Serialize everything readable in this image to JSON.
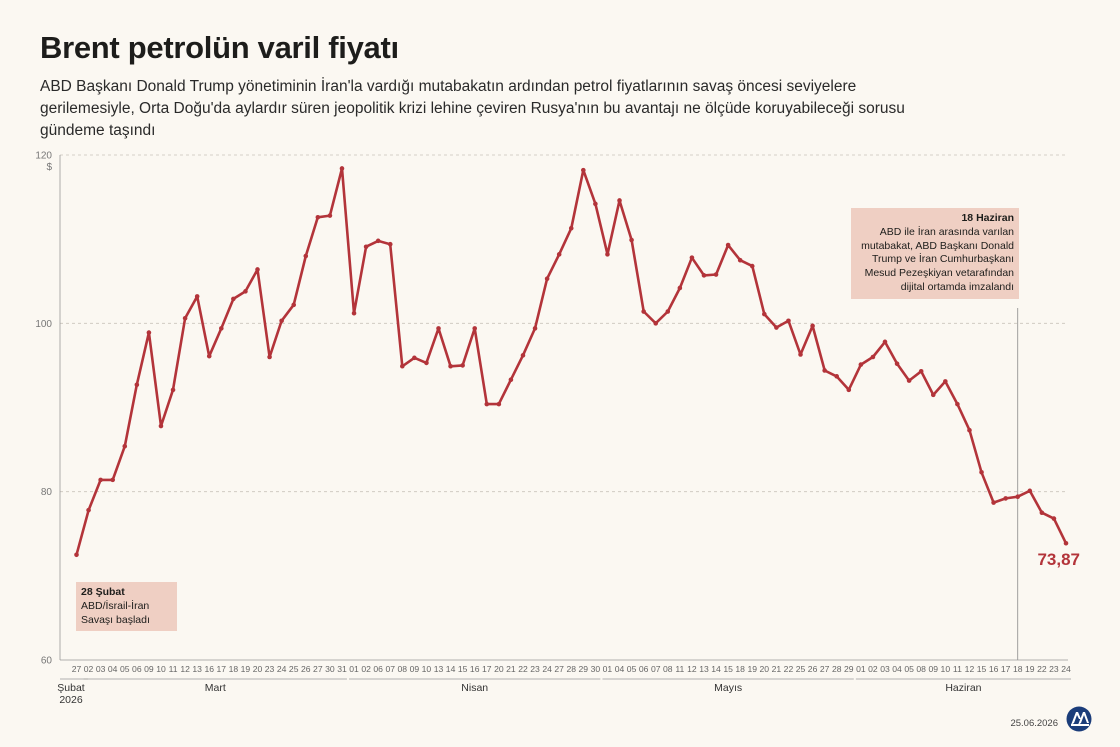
{
  "header": {
    "title": "Brent petrolün varil fiyatı",
    "subtitle": "ABD Başkanı Donald Trump yönetiminin İran'la vardığı mutabakatın ardından petrol fiyatlarının savaş öncesi seviyelere gerilemesiyle, Orta Doğu'da aylardır süren jeopolitik krizi lehine çeviren Rusya'nın bu avantajı ne ölçüde koruyabileceği sorusu gündeme taşındı"
  },
  "annotations": {
    "start": {
      "date": "28 Şubat",
      "text": "ABD/İsrail-İran Savaşı başladı"
    },
    "end": {
      "date": "18 Haziran",
      "text": "ABD ile İran arasında varılan mutabakat, ABD Başkanı Donald Trump ve İran Cumhurbaşkanı Mesud Pezeşkiyan vetarafından dijital ortamda imzalandı"
    },
    "last_value": "73,87"
  },
  "footer": {
    "date": "25.06.2026",
    "logo": "AA-logo"
  },
  "colors": {
    "line": "#b3343a",
    "callout": "#efcfc3",
    "background": "#fbf8f2"
  },
  "chart_data": {
    "type": "line",
    "ylim": [
      60,
      120
    ],
    "yticks": [
      60,
      80,
      100,
      120
    ],
    "yunit": "$",
    "grid": true,
    "months": [
      {
        "label": "Şubat\n2026",
        "from": 0,
        "to": 0
      },
      {
        "label": "Mart",
        "from": 1,
        "to": 22
      },
      {
        "label": "Nisan",
        "from": 23,
        "to": 43
      },
      {
        "label": "Mayıs",
        "from": 44,
        "to": 64
      },
      {
        "label": "Haziran",
        "from": 65,
        "to": 82
      }
    ],
    "x": [
      "27",
      "02",
      "03",
      "04",
      "05",
      "06",
      "09",
      "10",
      "11",
      "12",
      "13",
      "16",
      "17",
      "18",
      "19",
      "20",
      "23",
      "24",
      "25",
      "26",
      "27",
      "30",
      "31",
      "01",
      "02",
      "06",
      "07",
      "08",
      "09",
      "10",
      "13",
      "14",
      "15",
      "16",
      "17",
      "20",
      "21",
      "22",
      "23",
      "24",
      "27",
      "28",
      "29",
      "30",
      "01",
      "04",
      "05",
      "06",
      "07",
      "08",
      "11",
      "12",
      "13",
      "14",
      "15",
      "18",
      "19",
      "20",
      "21",
      "22",
      "25",
      "26",
      "27",
      "28",
      "29",
      "01",
      "02",
      "03",
      "04",
      "05",
      "08",
      "09",
      "10",
      "11",
      "12",
      "15",
      "16",
      "17",
      "18",
      "19",
      "22",
      "23",
      "24"
    ],
    "values": [
      72.5,
      77.8,
      81.4,
      81.4,
      85.4,
      92.7,
      98.9,
      87.8,
      92.1,
      100.6,
      103.2,
      96.1,
      99.4,
      102.9,
      103.8,
      106.4,
      96.0,
      100.3,
      102.2,
      108.0,
      112.6,
      112.8,
      118.4,
      101.2,
      109.1,
      109.8,
      109.4,
      94.9,
      95.9,
      95.3,
      99.4,
      94.9,
      95.0,
      99.4,
      90.4,
      90.4,
      93.3,
      96.2,
      99.4,
      105.3,
      108.2,
      111.3,
      118.2,
      114.2,
      108.2,
      114.6,
      109.9,
      101.4,
      100.0,
      101.4,
      104.2,
      107.8,
      105.7,
      105.8,
      109.3,
      107.5,
      106.8,
      101.1,
      99.5,
      100.3,
      96.3,
      99.7,
      94.4,
      93.7,
      92.1,
      95.1,
      96.0,
      97.8,
      95.2,
      93.2,
      94.3,
      91.5,
      93.1,
      90.4,
      87.3,
      82.3,
      78.7,
      79.2,
      79.4,
      80.1,
      77.5,
      76.8,
      73.87
    ],
    "annotations": [
      {
        "x_index": 0,
        "label": "28 Şubat"
      },
      {
        "x_index": 78,
        "label": "18 Haziran"
      }
    ]
  }
}
